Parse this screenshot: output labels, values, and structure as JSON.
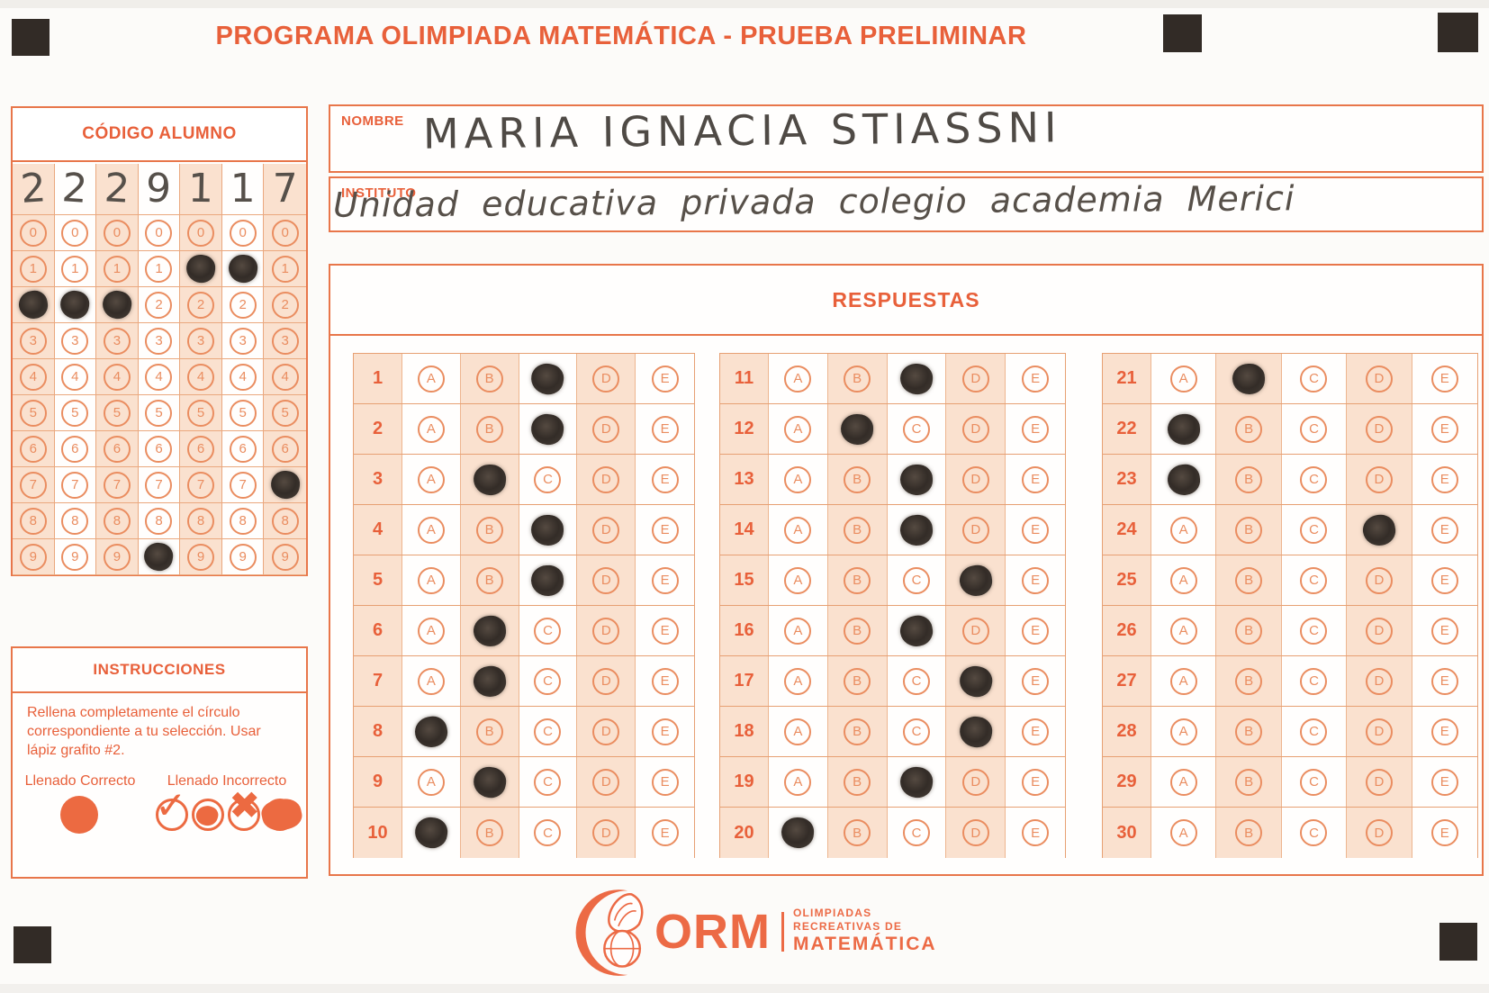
{
  "title": "PROGRAMA OLIMPIADA MATEMÁTICA  - PRUEBA PRELIMINAR",
  "colors": {
    "accent": "#e8603a",
    "cell_tint": "#fae1cf",
    "pencil": "#38312c",
    "registration_square": "#322b26"
  },
  "codigo": {
    "header": "CÓDIGO ALUMNO",
    "digits": [
      "2",
      "2",
      "2",
      "9",
      "1",
      "1",
      "7"
    ],
    "bubble_rows": [
      "0",
      "1",
      "2",
      "3",
      "4",
      "5",
      "6",
      "7",
      "8",
      "9"
    ]
  },
  "fields": {
    "nombre_label": "NOMBRE",
    "nombre_value": "MARIA IGNACIA STIASSNI",
    "instituto_label": "INSTITUTO",
    "instituto_value": "Unidad educativa privada colegio academia Merici"
  },
  "respuestas": {
    "header": "RESPUESTAS",
    "options": [
      "A",
      "B",
      "C",
      "D",
      "E"
    ],
    "questions": [
      {
        "num": 1,
        "answer": "C"
      },
      {
        "num": 2,
        "answer": "C"
      },
      {
        "num": 3,
        "answer": "B"
      },
      {
        "num": 4,
        "answer": "C"
      },
      {
        "num": 5,
        "answer": "C"
      },
      {
        "num": 6,
        "answer": "B"
      },
      {
        "num": 7,
        "answer": "B"
      },
      {
        "num": 8,
        "answer": "A"
      },
      {
        "num": 9,
        "answer": "B"
      },
      {
        "num": 10,
        "answer": "A"
      },
      {
        "num": 11,
        "answer": "C"
      },
      {
        "num": 12,
        "answer": "B"
      },
      {
        "num": 13,
        "answer": "C"
      },
      {
        "num": 14,
        "answer": "C"
      },
      {
        "num": 15,
        "answer": "D"
      },
      {
        "num": 16,
        "answer": "C"
      },
      {
        "num": 17,
        "answer": "D"
      },
      {
        "num": 18,
        "answer": "D"
      },
      {
        "num": 19,
        "answer": "C"
      },
      {
        "num": 20,
        "answer": "A"
      },
      {
        "num": 21,
        "answer": "B"
      },
      {
        "num": 22,
        "answer": "A"
      },
      {
        "num": 23,
        "answer": "A"
      },
      {
        "num": 24,
        "answer": "D"
      },
      {
        "num": 25,
        "answer": null
      },
      {
        "num": 26,
        "answer": null
      },
      {
        "num": 27,
        "answer": null
      },
      {
        "num": 28,
        "answer": null
      },
      {
        "num": 29,
        "answer": null
      },
      {
        "num": 30,
        "answer": null
      }
    ]
  },
  "instrucciones": {
    "header": "INSTRUCCIONES",
    "body": "Rellena completamente el círculo correspondiente a tu selección. Usar lápiz grafito #2.",
    "correct_label": "Llenado Correcto",
    "incorrect_label": "Llenado Incorrecto",
    "icons": [
      "filled-circle",
      "check-circle",
      "partial-fill-circle",
      "x-circle",
      "scribble-circle"
    ]
  },
  "logo": {
    "abbr": "ORM",
    "line1": "OLIMPIADAS",
    "line2": "RECREATIVAS DE",
    "line3": "MATEMÁTICA"
  }
}
